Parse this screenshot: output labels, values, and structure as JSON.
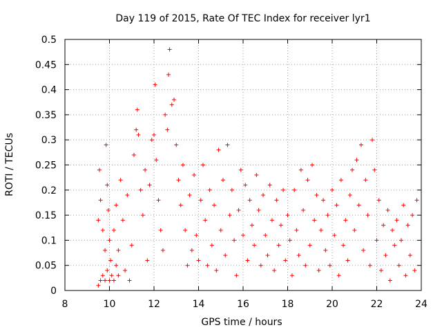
{
  "chart_data": {
    "type": "scatter",
    "title": "Day 119 of 2015, Rate Of TEC Index for receiver lyr1",
    "xlabel": "GPS time / hours",
    "ylabel": "ROTI / TECUs",
    "xlim": [
      8,
      24
    ],
    "ylim": [
      0,
      0.5
    ],
    "xticks": [
      "8",
      "10",
      "12",
      "14",
      "16",
      "18",
      "20",
      "22",
      "24"
    ],
    "yticks": [
      "0",
      "0.05",
      "0.1",
      "0.15",
      "0.2",
      "0.25",
      "0.3",
      "0.35",
      "0.4",
      "0.45",
      "0.5"
    ],
    "grid": true,
    "marker": "+",
    "color": "#ff0000",
    "series": [
      {
        "name": "",
        "points": [
          [
            9.5,
            0.01
          ],
          [
            9.6,
            0.02
          ],
          [
            9.7,
            0.03
          ],
          [
            9.8,
            0.02
          ],
          [
            9.9,
            0.04
          ],
          [
            10.0,
            0.02
          ],
          [
            10.1,
            0.03
          ],
          [
            10.2,
            0.02
          ],
          [
            10.3,
            0.05
          ],
          [
            10.4,
            0.03
          ],
          [
            9.5,
            0.14
          ],
          [
            9.55,
            0.24
          ],
          [
            9.6,
            0.18
          ],
          [
            9.7,
            0.12
          ],
          [
            9.8,
            0.08
          ],
          [
            9.85,
            0.29
          ],
          [
            9.9,
            0.21
          ],
          [
            9.95,
            0.16
          ],
          [
            10.0,
            0.1
          ],
          [
            10.05,
            0.06
          ],
          [
            10.2,
            0.12
          ],
          [
            10.3,
            0.17
          ],
          [
            10.4,
            0.08
          ],
          [
            10.5,
            0.22
          ],
          [
            10.6,
            0.14
          ],
          [
            10.7,
            0.04
          ],
          [
            10.8,
            0.19
          ],
          [
            10.9,
            0.02
          ],
          [
            11.0,
            0.09
          ],
          [
            11.1,
            0.27
          ],
          [
            11.2,
            0.32
          ],
          [
            11.25,
            0.36
          ],
          [
            11.3,
            0.31
          ],
          [
            11.4,
            0.2
          ],
          [
            11.5,
            0.15
          ],
          [
            11.6,
            0.24
          ],
          [
            11.7,
            0.06
          ],
          [
            11.8,
            0.21
          ],
          [
            11.9,
            0.3
          ],
          [
            12.0,
            0.31
          ],
          [
            12.05,
            0.41
          ],
          [
            12.1,
            0.26
          ],
          [
            12.2,
            0.18
          ],
          [
            12.3,
            0.12
          ],
          [
            12.4,
            0.08
          ],
          [
            12.5,
            0.35
          ],
          [
            12.6,
            0.32
          ],
          [
            12.65,
            0.43
          ],
          [
            12.7,
            0.48
          ],
          [
            12.8,
            0.37
          ],
          [
            12.9,
            0.38
          ],
          [
            13.0,
            0.29
          ],
          [
            13.1,
            0.22
          ],
          [
            13.2,
            0.17
          ],
          [
            13.3,
            0.25
          ],
          [
            13.4,
            0.12
          ],
          [
            13.5,
            0.05
          ],
          [
            13.6,
            0.19
          ],
          [
            13.7,
            0.08
          ],
          [
            13.8,
            0.23
          ],
          [
            13.9,
            0.11
          ],
          [
            14.0,
            0.06
          ],
          [
            14.1,
            0.18
          ],
          [
            14.2,
            0.25
          ],
          [
            14.3,
            0.14
          ],
          [
            14.4,
            0.05
          ],
          [
            14.5,
            0.2
          ],
          [
            14.6,
            0.09
          ],
          [
            14.7,
            0.17
          ],
          [
            14.8,
            0.04
          ],
          [
            14.9,
            0.28
          ],
          [
            15.0,
            0.12
          ],
          [
            15.1,
            0.22
          ],
          [
            15.2,
            0.07
          ],
          [
            15.3,
            0.29
          ],
          [
            15.4,
            0.15
          ],
          [
            15.5,
            0.2
          ],
          [
            15.6,
            0.1
          ],
          [
            15.7,
            0.03
          ],
          [
            15.8,
            0.16
          ],
          [
            15.9,
            0.24
          ],
          [
            16.0,
            0.11
          ],
          [
            16.1,
            0.21
          ],
          [
            16.2,
            0.06
          ],
          [
            16.3,
            0.18
          ],
          [
            16.4,
            0.13
          ],
          [
            16.5,
            0.09
          ],
          [
            16.6,
            0.23
          ],
          [
            16.7,
            0.16
          ],
          [
            16.8,
            0.05
          ],
          [
            16.9,
            0.19
          ],
          [
            17.0,
            0.11
          ],
          [
            17.1,
            0.07
          ],
          [
            17.2,
            0.21
          ],
          [
            17.3,
            0.14
          ],
          [
            17.4,
            0.04
          ],
          [
            17.5,
            0.18
          ],
          [
            17.6,
            0.09
          ],
          [
            17.7,
            0.13
          ],
          [
            17.8,
            0.2
          ],
          [
            17.9,
            0.06
          ],
          [
            18.0,
            0.15
          ],
          [
            18.1,
            0.1
          ],
          [
            18.2,
            0.03
          ],
          [
            18.3,
            0.2
          ],
          [
            18.4,
            0.12
          ],
          [
            18.5,
            0.07
          ],
          [
            18.6,
            0.24
          ],
          [
            18.7,
            0.16
          ],
          [
            18.8,
            0.05
          ],
          [
            18.9,
            0.22
          ],
          [
            19.0,
            0.09
          ],
          [
            19.1,
            0.25
          ],
          [
            19.2,
            0.14
          ],
          [
            19.3,
            0.19
          ],
          [
            19.4,
            0.04
          ],
          [
            19.5,
            0.12
          ],
          [
            19.6,
            0.18
          ],
          [
            19.7,
            0.08
          ],
          [
            19.8,
            0.15
          ],
          [
            19.9,
            0.05
          ],
          [
            20.0,
            0.2
          ],
          [
            20.1,
            0.11
          ],
          [
            20.2,
            0.17
          ],
          [
            20.3,
            0.03
          ],
          [
            20.4,
            0.22
          ],
          [
            20.5,
            0.09
          ],
          [
            20.6,
            0.14
          ],
          [
            20.7,
            0.06
          ],
          [
            20.8,
            0.19
          ],
          [
            20.9,
            0.24
          ],
          [
            21.0,
            0.12
          ],
          [
            21.1,
            0.26
          ],
          [
            21.2,
            0.17
          ],
          [
            21.3,
            0.29
          ],
          [
            21.4,
            0.08
          ],
          [
            21.5,
            0.22
          ],
          [
            21.6,
            0.15
          ],
          [
            21.7,
            0.05
          ],
          [
            21.8,
            0.3
          ],
          [
            21.9,
            0.24
          ],
          [
            22.0,
            0.1
          ],
          [
            22.1,
            0.18
          ],
          [
            22.2,
            0.04
          ],
          [
            22.3,
            0.13
          ],
          [
            22.4,
            0.07
          ],
          [
            22.5,
            0.16
          ],
          [
            22.6,
            0.02
          ],
          [
            22.7,
            0.12
          ],
          [
            22.8,
            0.09
          ],
          [
            22.9,
            0.14
          ],
          [
            23.0,
            0.05
          ],
          [
            23.1,
            0.1
          ],
          [
            23.2,
            0.17
          ],
          [
            23.3,
            0.03
          ],
          [
            23.4,
            0.13
          ],
          [
            23.5,
            0.07
          ],
          [
            23.6,
            0.15
          ],
          [
            23.7,
            0.04
          ],
          [
            23.8,
            0.18
          ]
        ]
      }
    ]
  }
}
